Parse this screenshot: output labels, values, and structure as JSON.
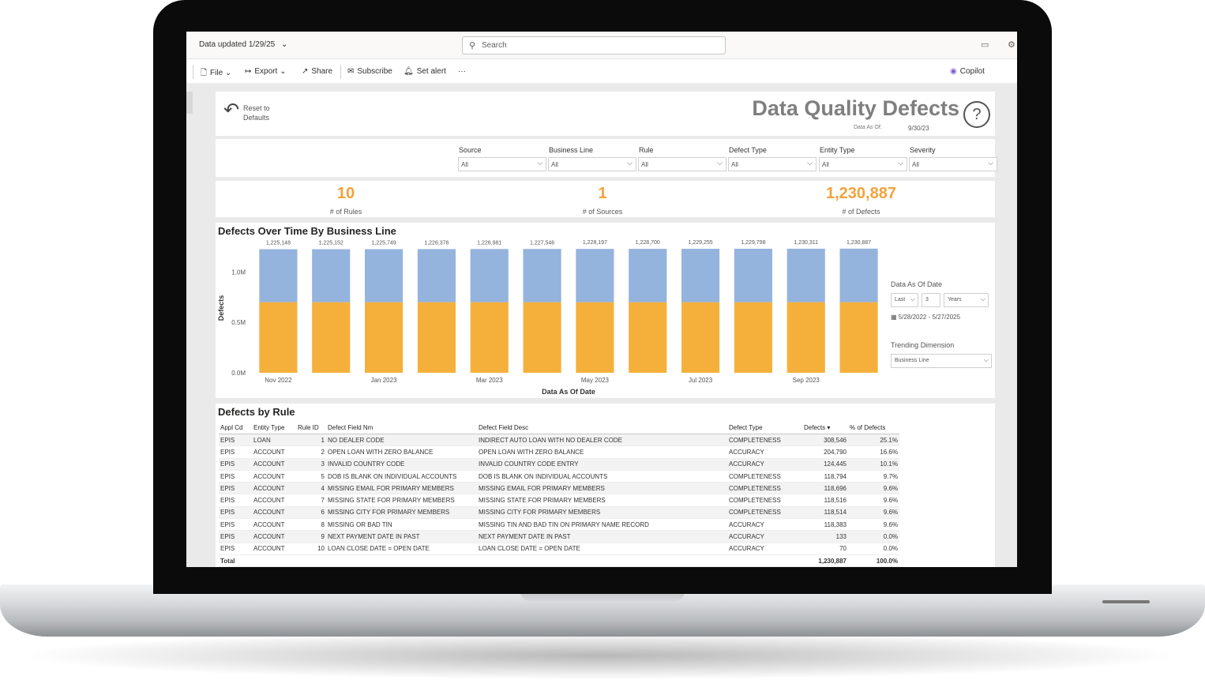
{
  "app": {
    "data_updated": "Data updated 1/29/25",
    "search_placeholder": "Search"
  },
  "toolbar": {
    "file": "File",
    "export": "Export",
    "share": "Share",
    "subscribe": "Subscribe",
    "set_alert": "Set alert",
    "more": "···",
    "copilot": "Copilot"
  },
  "header": {
    "reset_label": "Reset to Defaults",
    "title": "Data Quality Defects",
    "data_as_of_label": "Data As Of:",
    "data_as_of_value": "9/30/23"
  },
  "filters": [
    {
      "label": "Source",
      "value": "All"
    },
    {
      "label": "Business Line",
      "value": "All"
    },
    {
      "label": "Rule",
      "value": "All"
    },
    {
      "label": "Defect Type",
      "value": "All"
    },
    {
      "label": "Entity Type",
      "value": "All"
    },
    {
      "label": "Severity",
      "value": "All"
    }
  ],
  "kpis": [
    {
      "value": "10",
      "label": "# of Rules"
    },
    {
      "value": "1",
      "label": "# of Sources"
    },
    {
      "value": "1,230,887",
      "label": "# of Defects"
    }
  ],
  "chart_section": {
    "title": "Defects Over Time By Business Line",
    "date_label": "Data As Of Date",
    "date_mode": "Last",
    "date_count": "3",
    "date_unit": "Years",
    "date_range": "5/28/2022 - 5/27/2025",
    "trend_label": "Trending Dimension",
    "trend_value": "Business Line"
  },
  "chart_data": {
    "type": "bar",
    "stacked": true,
    "xlabel": "Data As Of Date",
    "ylabel": "Defects",
    "ylim": [
      0,
      1300000
    ],
    "yticks": [
      {
        "value": 0,
        "label": "0.0M"
      },
      {
        "value": 500000,
        "label": "0.5M"
      },
      {
        "value": 1000000,
        "label": "1.0M"
      }
    ],
    "x_tick_labels": [
      "Nov 2022",
      "",
      "Jan 2023",
      "",
      "Mar 2023",
      "",
      "May 2023",
      "",
      "Jul 2023",
      "",
      "Sep 2023",
      ""
    ],
    "totals": [
      1225148,
      1225152,
      1225749,
      1226376,
      1226981,
      1227546,
      1228197,
      1228700,
      1229255,
      1229798,
      1230311,
      1230887
    ],
    "total_labels": [
      "1,225,148",
      "1,225,152",
      "1,225,749",
      "1,226,376",
      "1,226,981",
      "1,227,546",
      "1,228,197",
      "1,228,700",
      "1,229,255",
      "1,229,798",
      "1,230,311",
      "1,230,887"
    ],
    "series": [
      {
        "color": "#f5b03c",
        "values": [
          700000,
          700000,
          700000,
          700000,
          700000,
          700000,
          700000,
          700000,
          700000,
          700000,
          700000,
          700000
        ]
      },
      {
        "color": "#94b3dd",
        "values": [
          525148,
          525152,
          525749,
          526376,
          526981,
          527546,
          528197,
          528700,
          529255,
          529798,
          530311,
          530887
        ]
      }
    ]
  },
  "table": {
    "title": "Defects by Rule",
    "headers": [
      "Appl Cd",
      "Entity Type",
      "Rule ID",
      "Defect Field Nm",
      "Defect Field Desc",
      "Defect Type",
      "Defects",
      "% of Defects"
    ],
    "rows": [
      [
        "EPIS",
        "LOAN",
        "1",
        "NO DEALER CODE",
        "INDIRECT AUTO LOAN WITH NO DEALER CODE",
        "COMPLETENESS",
        "308,546",
        "25.1%"
      ],
      [
        "EPIS",
        "ACCOUNT",
        "2",
        "OPEN LOAN WITH ZERO BALANCE",
        "OPEN LOAN WITH ZERO BALANCE",
        "ACCURACY",
        "204,790",
        "16.6%"
      ],
      [
        "EPIS",
        "ACCOUNT",
        "3",
        "INVALID COUNTRY CODE",
        "INVALID COUNTRY CODE ENTRY",
        "ACCURACY",
        "124,445",
        "10.1%"
      ],
      [
        "EPIS",
        "ACCOUNT",
        "5",
        "DOB IS BLANK ON INDIVIDUAL ACCOUNTS",
        "DOB IS BLANK ON INDIVIDUAL ACCOUNTS",
        "COMPLETENESS",
        "118,794",
        "9.7%"
      ],
      [
        "EPIS",
        "ACCOUNT",
        "4",
        "MISSING EMAIL FOR PRIMARY MEMBERS",
        "MISSING EMAIL FOR PRIMARY MEMBERS",
        "COMPLETENESS",
        "118,696",
        "9.6%"
      ],
      [
        "EPIS",
        "ACCOUNT",
        "7",
        "MISSING STATE FOR PRIMARY MEMBERS",
        "MISSING STATE FOR PRIMARY MEMBERS",
        "COMPLETENESS",
        "118,516",
        "9.6%"
      ],
      [
        "EPIS",
        "ACCOUNT",
        "6",
        "MISSING CITY FOR PRIMARY MEMBERS",
        "MISSING CITY FOR PRIMARY MEMBERS",
        "COMPLETENESS",
        "118,514",
        "9.6%"
      ],
      [
        "EPIS",
        "ACCOUNT",
        "8",
        "MISSING OR BAD TIN",
        "MISSING TIN AND BAD TIN ON PRIMARY NAME RECORD",
        "ACCURACY",
        "118,383",
        "9.6%"
      ],
      [
        "EPIS",
        "ACCOUNT",
        "9",
        "NEXT PAYMENT DATE IN PAST",
        "NEXT PAYMENT DATE IN PAST",
        "ACCURACY",
        "133",
        "0.0%"
      ],
      [
        "EPIS",
        "ACCOUNT",
        "10",
        "LOAN CLOSE DATE = OPEN DATE",
        "LOAN CLOSE DATE = OPEN DATE",
        "ACCURACY",
        "70",
        "0.0%"
      ]
    ],
    "total_label": "Total",
    "total_defects": "1,230,887",
    "total_pct": "100.0%"
  }
}
